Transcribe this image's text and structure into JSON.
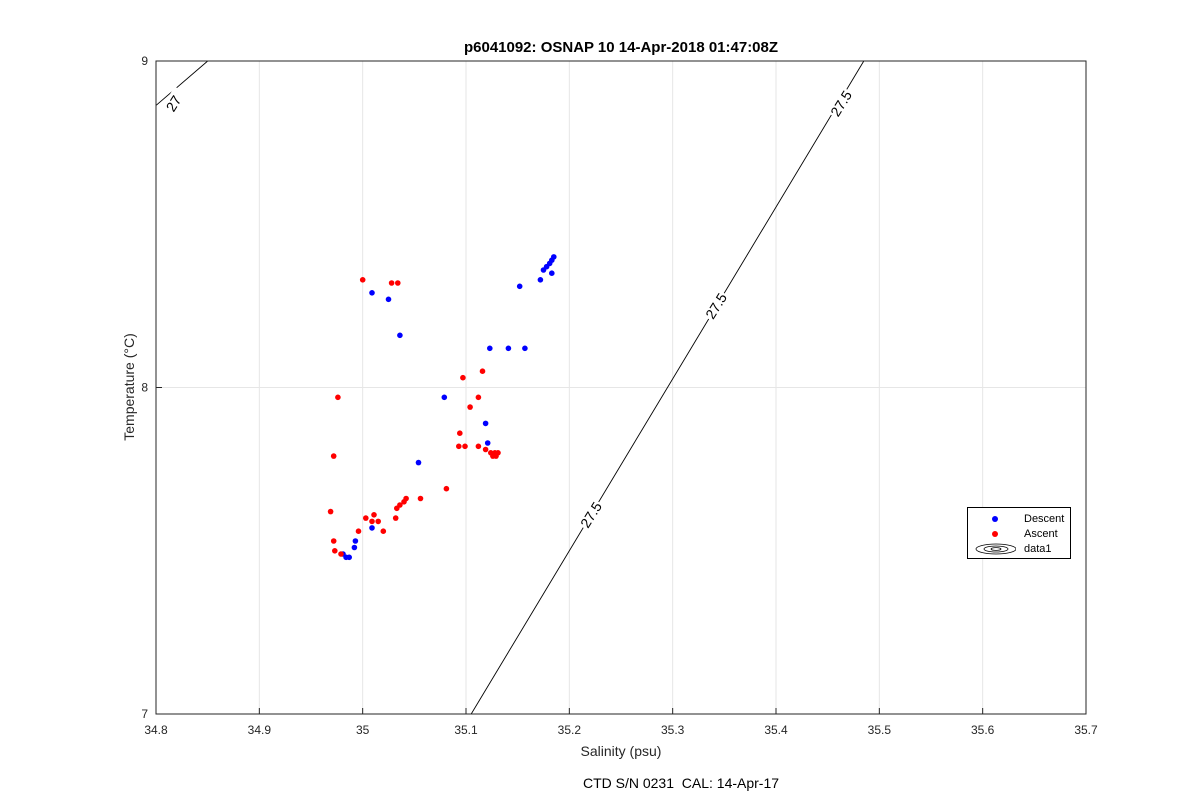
{
  "chart_data": {
    "type": "scatter",
    "title": "p6041092: OSNAP 10 14-Apr-2018 01:47:08Z",
    "xlabel": "Salinity (psu)",
    "ylabel": "Temperature (°C)",
    "footer": "CTD S/N 0231  CAL: 14-Apr-17",
    "xlim": [
      34.8,
      35.7
    ],
    "ylim": [
      7,
      9
    ],
    "xticks": [
      "34.8",
      "34.9",
      "35",
      "35.1",
      "35.2",
      "35.3",
      "35.4",
      "35.5",
      "35.6",
      "35.7"
    ],
    "yticks": [
      "7",
      "8",
      "9"
    ],
    "grid": true,
    "legend_position": "right",
    "series": [
      {
        "name": "Descent",
        "color": "#0000ff",
        "points": [
          [
            35.185,
            8.4
          ],
          [
            35.183,
            8.39
          ],
          [
            35.181,
            8.38
          ],
          [
            35.178,
            8.37
          ],
          [
            35.175,
            8.36
          ],
          [
            35.183,
            8.35
          ],
          [
            35.172,
            8.33
          ],
          [
            35.152,
            8.31
          ],
          [
            35.009,
            8.29
          ],
          [
            35.025,
            8.27
          ],
          [
            35.036,
            8.16
          ],
          [
            35.123,
            8.12
          ],
          [
            35.141,
            8.12
          ],
          [
            35.157,
            8.12
          ],
          [
            35.079,
            7.97
          ],
          [
            35.119,
            7.89
          ],
          [
            35.121,
            7.83
          ],
          [
            35.054,
            7.77
          ],
          [
            35.009,
            7.57
          ],
          [
            34.993,
            7.53
          ],
          [
            34.992,
            7.51
          ],
          [
            34.981,
            7.49
          ],
          [
            34.984,
            7.48
          ],
          [
            34.987,
            7.48
          ]
        ]
      },
      {
        "name": "Ascent",
        "color": "#ff0000",
        "points": [
          [
            35.0,
            8.33
          ],
          [
            35.028,
            8.32
          ],
          [
            35.034,
            8.32
          ],
          [
            34.976,
            7.97
          ],
          [
            35.116,
            8.05
          ],
          [
            35.097,
            8.03
          ],
          [
            35.112,
            7.97
          ],
          [
            35.104,
            7.94
          ],
          [
            34.972,
            7.79
          ],
          [
            35.094,
            7.86
          ],
          [
            35.093,
            7.82
          ],
          [
            35.099,
            7.82
          ],
          [
            35.112,
            7.82
          ],
          [
            35.119,
            7.81
          ],
          [
            35.124,
            7.8
          ],
          [
            35.128,
            7.8
          ],
          [
            35.131,
            7.8
          ],
          [
            35.126,
            7.79
          ],
          [
            35.129,
            7.79
          ],
          [
            35.081,
            7.69
          ],
          [
            35.056,
            7.66
          ],
          [
            35.042,
            7.66
          ],
          [
            35.04,
            7.65
          ],
          [
            35.036,
            7.64
          ],
          [
            35.033,
            7.63
          ],
          [
            34.969,
            7.62
          ],
          [
            35.011,
            7.61
          ],
          [
            35.003,
            7.6
          ],
          [
            35.032,
            7.6
          ],
          [
            35.009,
            7.59
          ],
          [
            35.015,
            7.59
          ],
          [
            35.02,
            7.56
          ],
          [
            34.996,
            7.56
          ],
          [
            34.972,
            7.53
          ],
          [
            34.973,
            7.5
          ],
          [
            34.979,
            7.49
          ]
        ]
      }
    ],
    "contours": [
      {
        "label": "27",
        "line": [
          [
            34.6,
            8.32
          ],
          [
            34.85,
            9.0
          ]
        ],
        "label_at": [
          34.817,
          8.87
        ],
        "label_angle": -58
      },
      {
        "label": "27.5",
        "line": [
          [
            35.105,
            7.0
          ],
          [
            35.485,
            9.0
          ]
        ],
        "label_at": [
          35.221,
          7.61
        ],
        "label_angle": -58
      },
      {
        "label": "27.5",
        "line": [
          [
            35.105,
            7.0
          ],
          [
            35.485,
            9.0
          ]
        ],
        "label_at": [
          35.342,
          8.25
        ],
        "label_angle": -58
      },
      {
        "label": "27.5",
        "line": [
          [
            35.105,
            7.0
          ],
          [
            35.485,
            9.0
          ]
        ],
        "label_at": [
          35.463,
          8.87
        ],
        "label_angle": -58
      }
    ],
    "legend": [
      {
        "label": "Descent",
        "kind": "marker",
        "color": "#0000ff"
      },
      {
        "label": "Ascent",
        "kind": "marker",
        "color": "#ff0000"
      },
      {
        "label": "data1",
        "kind": "contour",
        "color": "#000000"
      }
    ]
  }
}
